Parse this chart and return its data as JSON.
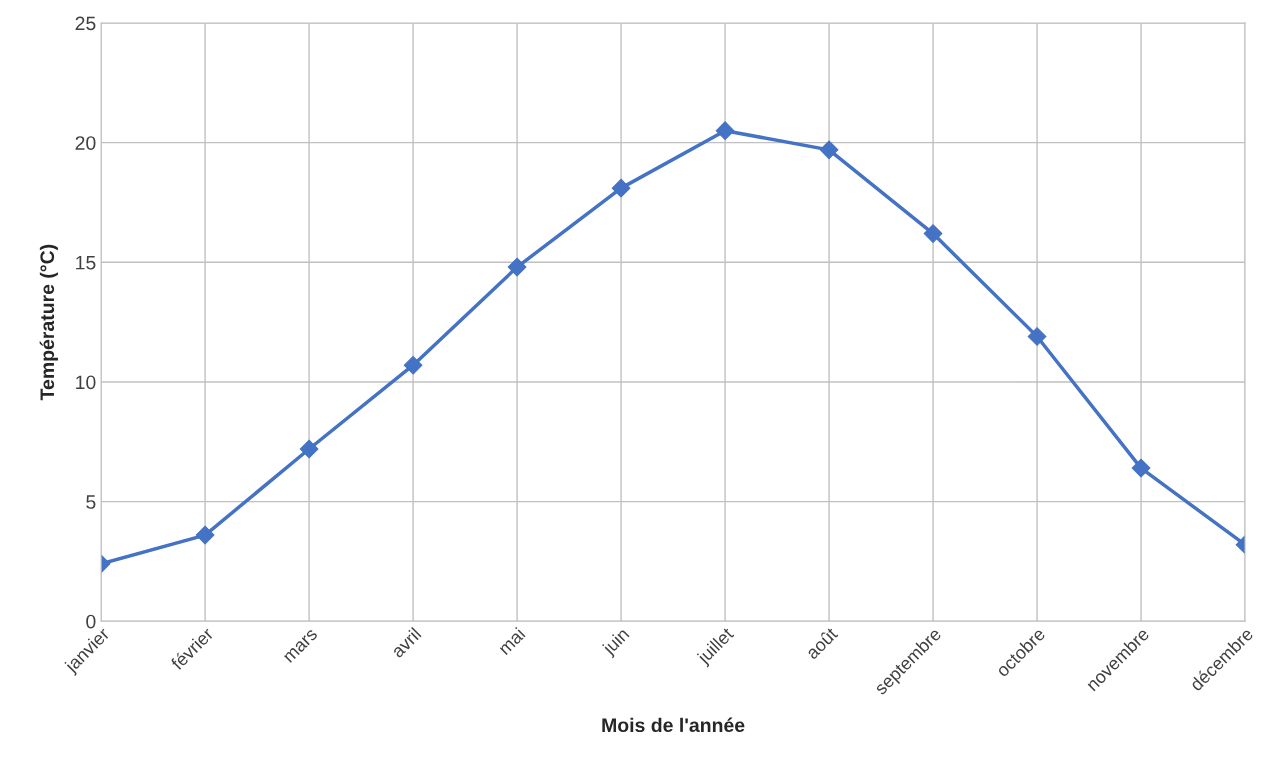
{
  "chart_data": {
    "type": "line",
    "xlabel": "Mois de l'année",
    "ylabel": "Température (°C)",
    "categories": [
      "janvier",
      "février",
      "mars",
      "avril",
      "mai",
      "juin",
      "juillet",
      "août",
      "septembre",
      "octobre",
      "novembre",
      "décembre"
    ],
    "series": [
      {
        "color": "#4472c4",
        "values": [
          2.4,
          3.6,
          7.2,
          10.7,
          14.8,
          18.1,
          20.5,
          19.7,
          16.2,
          11.9,
          6.4,
          3.2
        ]
      }
    ],
    "ylim": [
      0,
      25
    ],
    "yticks": [
      0,
      5,
      10,
      15,
      20,
      25
    ],
    "grid": true,
    "marker": "diamond",
    "line_style": "solid"
  }
}
